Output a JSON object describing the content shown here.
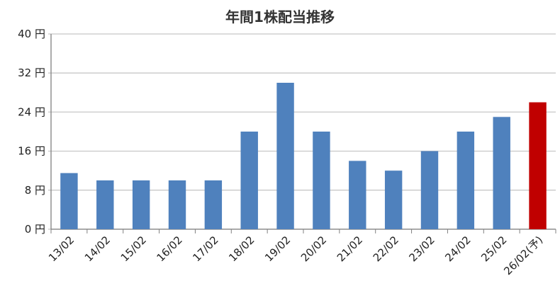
{
  "chart_data": {
    "type": "bar",
    "title": "年間1株配当推移",
    "categories": [
      "13/02",
      "14/02",
      "15/02",
      "16/02",
      "17/02",
      "18/02",
      "19/02",
      "20/02",
      "21/02",
      "22/02",
      "23/02",
      "24/02",
      "25/02",
      "26/02(予)"
    ],
    "values": [
      11.5,
      10,
      10,
      10,
      10,
      20,
      30,
      20,
      14,
      12,
      16,
      20,
      23,
      26
    ],
    "ylim": [
      0,
      40
    ],
    "yticks": [
      0,
      8,
      16,
      24,
      32,
      40
    ],
    "ytick_labels": [
      "0 円",
      "8 円",
      "16 円",
      "24 円",
      "32 円",
      "40 円"
    ],
    "xlabel": "",
    "ylabel": "",
    "grid": true,
    "colors": {
      "actual": "#4f81bd",
      "forecast": "#c00000",
      "grid": "#c8c8c8",
      "axis": "#808080"
    },
    "forecast_index": 13
  }
}
